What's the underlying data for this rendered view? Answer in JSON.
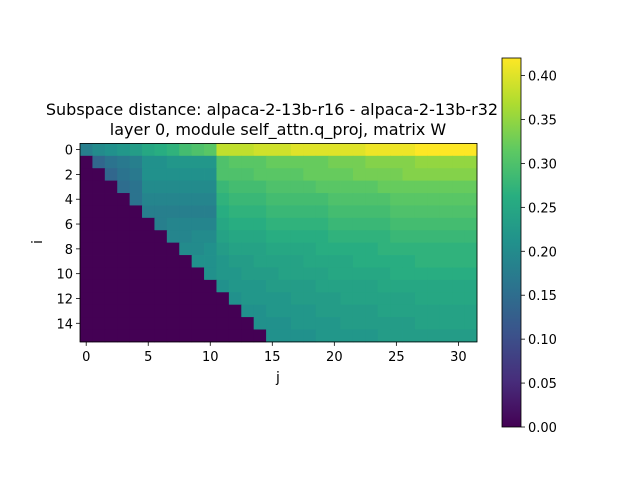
{
  "chart_data": {
    "type": "heatmap",
    "title_lines": [
      "Subspace distance: alpaca-2-13b-r16 - alpaca-2-13b-r32",
      "layer 0, module self_attn.q_proj, matrix W"
    ],
    "xlabel": "j",
    "ylabel": "i",
    "rows": 16,
    "cols": 32,
    "x_ticks": [
      0,
      5,
      10,
      15,
      20,
      25,
      30
    ],
    "y_ticks": [
      0,
      2,
      4,
      6,
      8,
      10,
      12,
      14
    ],
    "colormap": "viridis",
    "colorbar": {
      "vmin": 0.0,
      "vmax": 0.42,
      "ticks": [
        "0.00",
        "0.05",
        "0.10",
        "0.15",
        "0.20",
        "0.25",
        "0.30",
        "0.35",
        "0.40"
      ]
    },
    "mask_rule": "value = 0 for j < i (lower triangle)",
    "row_profiles": [
      [
        0.18,
        0.2,
        0.21,
        0.22,
        0.23,
        0.25,
        0.26,
        0.27,
        0.29,
        0.3,
        0.31,
        0.38,
        0.38,
        0.38,
        0.39,
        0.39,
        0.39,
        0.4,
        0.4,
        0.4,
        0.4,
        0.4,
        0.4,
        0.41,
        0.41,
        0.41,
        0.41,
        0.42,
        0.42,
        0.42,
        0.42,
        0.42
      ],
      [
        0.0,
        0.14,
        0.16,
        0.17,
        0.18,
        0.21,
        0.21,
        0.22,
        0.22,
        0.22,
        0.22,
        0.3,
        0.31,
        0.31,
        0.31,
        0.32,
        0.32,
        0.32,
        0.32,
        0.32,
        0.33,
        0.33,
        0.33,
        0.34,
        0.34,
        0.34,
        0.34,
        0.35,
        0.35,
        0.35,
        0.35,
        0.35
      ],
      [
        0.0,
        0.0,
        0.14,
        0.16,
        0.17,
        0.21,
        0.21,
        0.21,
        0.21,
        0.21,
        0.21,
        0.3,
        0.3,
        0.3,
        0.31,
        0.31,
        0.31,
        0.31,
        0.32,
        0.32,
        0.32,
        0.32,
        0.33,
        0.33,
        0.33,
        0.33,
        0.34,
        0.34,
        0.34,
        0.34,
        0.34,
        0.34
      ],
      [
        0.0,
        0.0,
        0.0,
        0.15,
        0.16,
        0.2,
        0.2,
        0.2,
        0.2,
        0.2,
        0.2,
        0.28,
        0.29,
        0.29,
        0.29,
        0.3,
        0.3,
        0.3,
        0.3,
        0.31,
        0.31,
        0.31,
        0.31,
        0.31,
        0.32,
        0.32,
        0.32,
        0.32,
        0.32,
        0.32,
        0.32,
        0.32
      ],
      [
        0.0,
        0.0,
        0.0,
        0.0,
        0.16,
        0.19,
        0.19,
        0.19,
        0.19,
        0.19,
        0.19,
        0.27,
        0.28,
        0.28,
        0.28,
        0.29,
        0.29,
        0.29,
        0.29,
        0.29,
        0.3,
        0.3,
        0.3,
        0.3,
        0.3,
        0.31,
        0.31,
        0.31,
        0.31,
        0.31,
        0.31,
        0.31
      ],
      [
        0.0,
        0.0,
        0.0,
        0.0,
        0.0,
        0.18,
        0.18,
        0.18,
        0.18,
        0.18,
        0.18,
        0.26,
        0.27,
        0.27,
        0.27,
        0.28,
        0.28,
        0.28,
        0.28,
        0.28,
        0.29,
        0.29,
        0.29,
        0.29,
        0.29,
        0.3,
        0.3,
        0.3,
        0.3,
        0.3,
        0.3,
        0.3
      ],
      [
        0.0,
        0.0,
        0.0,
        0.0,
        0.0,
        0.0,
        0.18,
        0.19,
        0.19,
        0.19,
        0.19,
        0.25,
        0.26,
        0.26,
        0.26,
        0.27,
        0.27,
        0.27,
        0.27,
        0.27,
        0.28,
        0.28,
        0.28,
        0.28,
        0.28,
        0.29,
        0.29,
        0.29,
        0.29,
        0.29,
        0.29,
        0.29
      ],
      [
        0.0,
        0.0,
        0.0,
        0.0,
        0.0,
        0.0,
        0.0,
        0.19,
        0.19,
        0.2,
        0.2,
        0.24,
        0.25,
        0.25,
        0.25,
        0.26,
        0.26,
        0.26,
        0.26,
        0.26,
        0.27,
        0.27,
        0.27,
        0.27,
        0.27,
        0.28,
        0.28,
        0.28,
        0.28,
        0.28,
        0.28,
        0.28
      ],
      [
        0.0,
        0.0,
        0.0,
        0.0,
        0.0,
        0.0,
        0.0,
        0.0,
        0.2,
        0.2,
        0.21,
        0.23,
        0.24,
        0.24,
        0.24,
        0.25,
        0.25,
        0.25,
        0.25,
        0.26,
        0.26,
        0.26,
        0.26,
        0.26,
        0.27,
        0.27,
        0.27,
        0.27,
        0.27,
        0.27,
        0.27,
        0.27
      ],
      [
        0.0,
        0.0,
        0.0,
        0.0,
        0.0,
        0.0,
        0.0,
        0.0,
        0.0,
        0.21,
        0.21,
        0.22,
        0.23,
        0.23,
        0.24,
        0.24,
        0.24,
        0.24,
        0.25,
        0.25,
        0.25,
        0.25,
        0.26,
        0.26,
        0.26,
        0.26,
        0.26,
        0.27,
        0.27,
        0.27,
        0.27,
        0.27
      ],
      [
        0.0,
        0.0,
        0.0,
        0.0,
        0.0,
        0.0,
        0.0,
        0.0,
        0.0,
        0.0,
        0.21,
        0.22,
        0.22,
        0.23,
        0.23,
        0.23,
        0.24,
        0.24,
        0.24,
        0.24,
        0.25,
        0.25,
        0.25,
        0.25,
        0.25,
        0.26,
        0.26,
        0.26,
        0.26,
        0.26,
        0.26,
        0.26
      ],
      [
        0.0,
        0.0,
        0.0,
        0.0,
        0.0,
        0.0,
        0.0,
        0.0,
        0.0,
        0.0,
        0.0,
        0.21,
        0.22,
        0.22,
        0.22,
        0.23,
        0.23,
        0.23,
        0.23,
        0.24,
        0.24,
        0.24,
        0.24,
        0.24,
        0.25,
        0.25,
        0.25,
        0.25,
        0.25,
        0.25,
        0.25,
        0.25
      ],
      [
        0.0,
        0.0,
        0.0,
        0.0,
        0.0,
        0.0,
        0.0,
        0.0,
        0.0,
        0.0,
        0.0,
        0.0,
        0.21,
        0.22,
        0.22,
        0.22,
        0.22,
        0.23,
        0.23,
        0.23,
        0.23,
        0.24,
        0.24,
        0.24,
        0.24,
        0.24,
        0.24,
        0.25,
        0.25,
        0.25,
        0.25,
        0.25
      ],
      [
        0.0,
        0.0,
        0.0,
        0.0,
        0.0,
        0.0,
        0.0,
        0.0,
        0.0,
        0.0,
        0.0,
        0.0,
        0.0,
        0.21,
        0.21,
        0.22,
        0.22,
        0.22,
        0.22,
        0.23,
        0.23,
        0.23,
        0.23,
        0.23,
        0.24,
        0.24,
        0.24,
        0.24,
        0.24,
        0.24,
        0.24,
        0.24
      ],
      [
        0.0,
        0.0,
        0.0,
        0.0,
        0.0,
        0.0,
        0.0,
        0.0,
        0.0,
        0.0,
        0.0,
        0.0,
        0.0,
        0.0,
        0.21,
        0.21,
        0.21,
        0.22,
        0.22,
        0.22,
        0.22,
        0.23,
        0.23,
        0.23,
        0.23,
        0.23,
        0.23,
        0.24,
        0.24,
        0.24,
        0.24,
        0.24
      ],
      [
        0.0,
        0.0,
        0.0,
        0.0,
        0.0,
        0.0,
        0.0,
        0.0,
        0.0,
        0.0,
        0.0,
        0.0,
        0.0,
        0.0,
        0.0,
        0.21,
        0.21,
        0.21,
        0.21,
        0.22,
        0.22,
        0.22,
        0.22,
        0.22,
        0.23,
        0.23,
        0.23,
        0.23,
        0.23,
        0.23,
        0.23,
        0.23
      ]
    ]
  }
}
